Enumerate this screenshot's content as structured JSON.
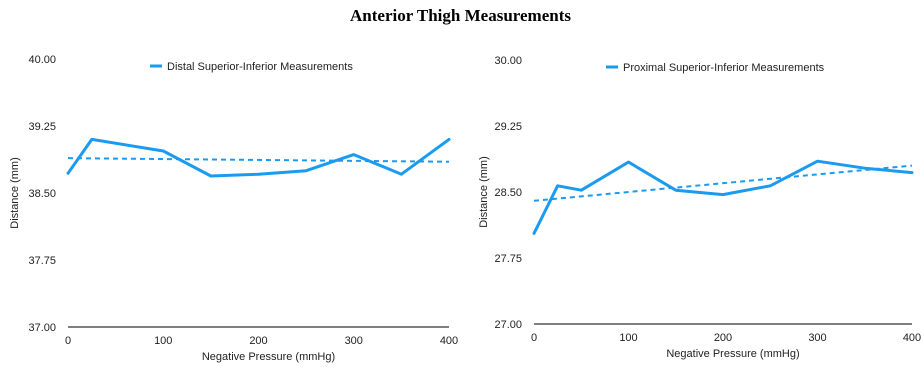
{
  "title": "Anterior Thigh Measurements",
  "colors": {
    "series": "#1a9bf0",
    "axis": "#333333"
  },
  "chart_data": [
    {
      "type": "line",
      "xlabel": "Negative Pressure (mmHg)",
      "ylabel": "Distance (mm)",
      "ylim": [
        37.0,
        40.0
      ],
      "xlim": [
        0,
        400
      ],
      "yticks": [
        "37.00",
        "37.75",
        "38.50",
        "39.25",
        "40.00"
      ],
      "xticks": [
        "0",
        "100",
        "200",
        "300",
        "400"
      ],
      "grid": false,
      "legend": "top-center",
      "series": [
        {
          "name": "Distal Superior-Inferior Measurements",
          "x": [
            0,
            25,
            100,
            150,
            200,
            250,
            300,
            350,
            400
          ],
          "y": [
            38.72,
            39.1,
            38.97,
            38.69,
            38.71,
            38.75,
            38.93,
            38.71,
            39.1
          ]
        }
      ],
      "trendline": {
        "style": "dashed",
        "y_start": 38.89,
        "y_end": 38.85
      }
    },
    {
      "type": "line",
      "xlabel": "Negative Pressure (mmHg)",
      "ylabel": "Distance (mm)",
      "ylim": [
        27.0,
        30.0
      ],
      "xlim": [
        0,
        400
      ],
      "yticks": [
        "27.00",
        "27.75",
        "28.50",
        "29.25",
        "30.00"
      ],
      "xticks": [
        "0",
        "100",
        "200",
        "300",
        "400"
      ],
      "grid": false,
      "legend": "top-center",
      "series": [
        {
          "name": "Proximal Superior-Inferior Measurements",
          "x": [
            0,
            25,
            50,
            100,
            150,
            200,
            250,
            300,
            350,
            400
          ],
          "y": [
            28.03,
            28.57,
            28.52,
            28.84,
            28.52,
            28.47,
            28.57,
            28.85,
            28.77,
            28.72
          ]
        }
      ],
      "trendline": {
        "style": "dashed",
        "y_start": 28.4,
        "y_end": 28.8
      }
    }
  ]
}
